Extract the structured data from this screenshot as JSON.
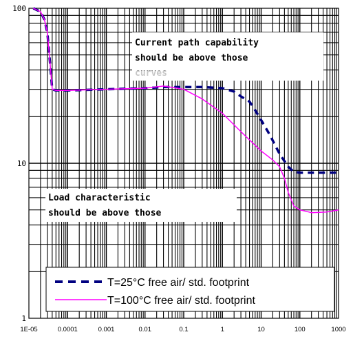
{
  "chart_data": {
    "type": "line",
    "title": "",
    "xlabel": "",
    "ylabel": "",
    "x_scale": "log",
    "y_scale": "log",
    "xlim": [
      1e-05,
      1000
    ],
    "ylim": [
      1,
      100
    ],
    "grid": true,
    "x_ticks": [
      "1E-05",
      "0.0001",
      "0.001",
      "0.01",
      "0.1",
      "1",
      "10",
      "100",
      "1000"
    ],
    "y_ticks": [
      "1",
      "10",
      "100"
    ],
    "legend_position": "bottom-right",
    "series": [
      {
        "name": "T=25°C free air/ std. footprint",
        "color": "#000080",
        "style": "dashed",
        "x": [
          1.3e-05,
          2e-05,
          2.5e-05,
          3e-05,
          3.5e-05,
          4e-05,
          5e-05,
          0.0001,
          0.001,
          0.01,
          0.03,
          0.1,
          0.3,
          1,
          2,
          3,
          5,
          7,
          10,
          15,
          20,
          30,
          50,
          70,
          100,
          200,
          500,
          1000
        ],
        "values": [
          100,
          95,
          85,
          70,
          45,
          30,
          29.5,
          29.5,
          30,
          30.5,
          31,
          31,
          31,
          30.5,
          29,
          27,
          25,
          22,
          19,
          16,
          14,
          11.5,
          9.5,
          8.8,
          8.7,
          8.7,
          8.7,
          8.7
        ]
      },
      {
        "name": "T=100°C free air/ std. footprint",
        "color": "#ff00ff",
        "style": "solid",
        "x": [
          1.3e-05,
          2e-05,
          2.5e-05,
          3e-05,
          3.5e-05,
          4e-05,
          5e-05,
          0.0001,
          0.001,
          0.01,
          0.03,
          0.1,
          0.3,
          1,
          3,
          10,
          20,
          30,
          40,
          50,
          70,
          100,
          200,
          500,
          1000
        ],
        "values": [
          100,
          95,
          85,
          70,
          45,
          30,
          29.5,
          29.5,
          30,
          30.5,
          31.5,
          30,
          26,
          21,
          16,
          12,
          10.5,
          9.5,
          8,
          6.5,
          5.3,
          5.0,
          4.8,
          4.85,
          5.0
        ]
      }
    ],
    "annotations": [
      {
        "lines": [
          "Current path capability",
          "should be above those",
          "curves"
        ]
      },
      {
        "lines": [
          "Load characteristic",
          "should be above those"
        ]
      }
    ]
  }
}
